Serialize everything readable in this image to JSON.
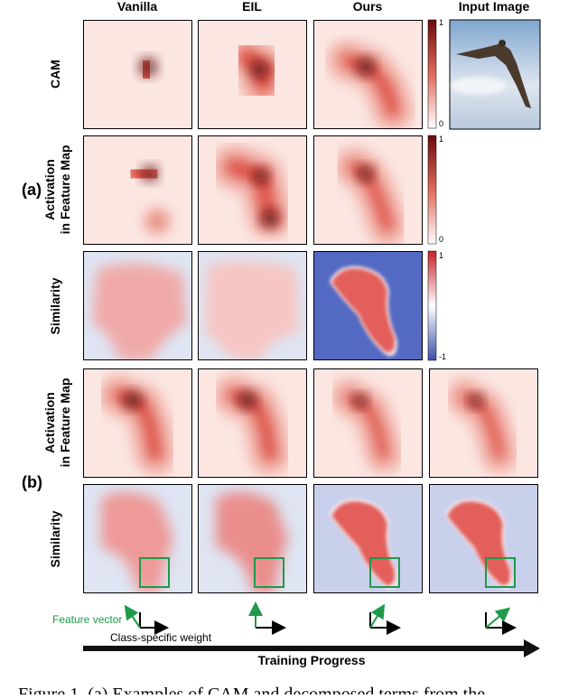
{
  "columns": [
    "Vanilla",
    "EIL",
    "Ours",
    "Input Image"
  ],
  "rows": {
    "cam": "CAM",
    "activation": [
      "Activation",
      "in Feature Map"
    ],
    "similarity": "Similarity"
  },
  "groups": [
    "(a)",
    "(b)"
  ],
  "colorbars": [
    {
      "max": "1",
      "min": "0"
    },
    {
      "max": "1",
      "min": "0"
    },
    {
      "max": "1",
      "min": "-1"
    }
  ],
  "legend": {
    "feature_vector": "Feature vector",
    "class_weight": "Class-specific weight"
  },
  "axis": "Training Progress",
  "caption": "Figure 1. (a) Examples of CAM and decomposed terms from the"
}
